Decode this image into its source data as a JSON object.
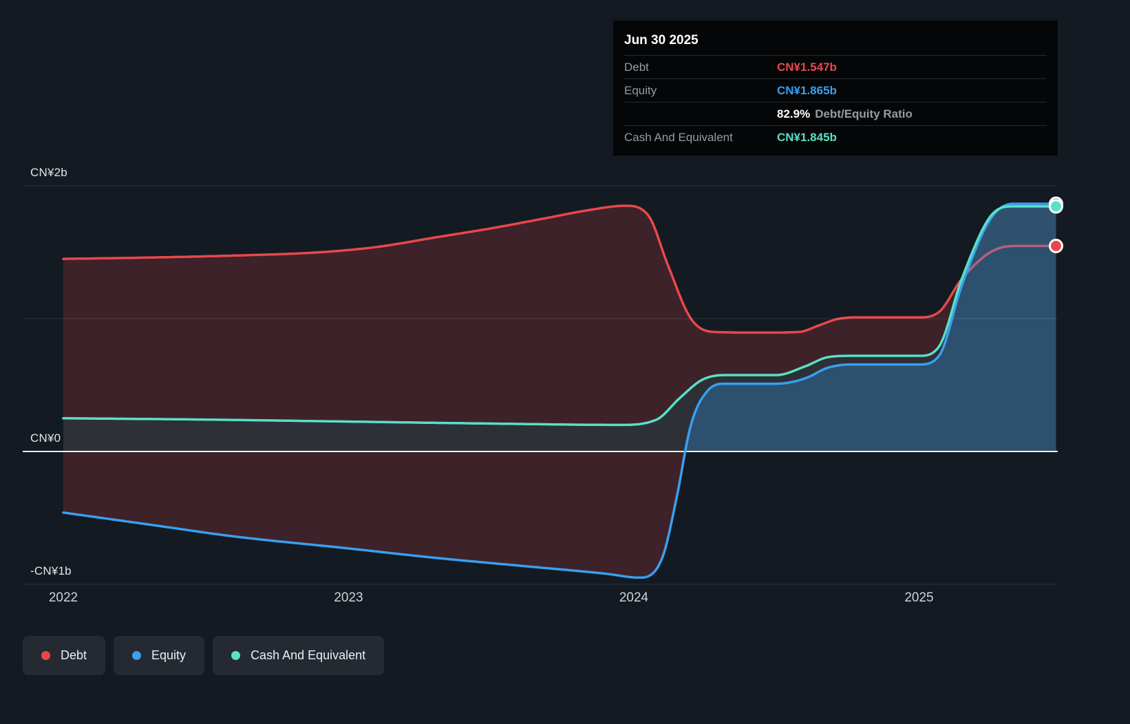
{
  "colors": {
    "background": "#141a21",
    "debt": "#e8484d",
    "equity": "#38a0f0",
    "cash": "#5ae0c5",
    "zero_line": "#eceff1",
    "gridline": "rgba(255,255,255,0.11)"
  },
  "tooltip": {
    "date": "Jun 30 2025",
    "debt_label": "Debt",
    "debt_value": "CN¥1.547b",
    "equity_label": "Equity",
    "equity_value": "CN¥1.865b",
    "ratio_value": "82.9%",
    "ratio_label": "Debt/Equity Ratio",
    "cash_label": "Cash And Equivalent",
    "cash_value": "CN¥1.845b"
  },
  "legend": {
    "items": [
      {
        "label": "Debt",
        "color_key": "debt"
      },
      {
        "label": "Equity",
        "color_key": "equity"
      },
      {
        "label": "Cash And Equivalent",
        "color_key": "cash"
      }
    ]
  },
  "chart_data": {
    "type": "area",
    "unit": "CN¥ billions",
    "x_axis": {
      "ticks": [
        {
          "label": "2022",
          "value": 2022
        },
        {
          "label": "2023",
          "value": 2023
        },
        {
          "label": "2024",
          "value": 2024
        },
        {
          "label": "2025",
          "value": 2025
        }
      ],
      "range": [
        2022,
        2025.48
      ]
    },
    "y_axis": {
      "ticks": [
        {
          "label": "CN¥2b",
          "value": 2
        },
        {
          "label": "CN¥0",
          "value": 0
        },
        {
          "label": "-CN¥1b",
          "value": -1
        }
      ],
      "grid_values": [
        2,
        1,
        -1
      ],
      "range": [
        -1.1,
        2.1
      ]
    },
    "series": [
      {
        "name": "Debt",
        "color_key": "debt",
        "end_value": 1.547,
        "points": [
          [
            2022,
            1.45
          ],
          [
            2022.3,
            1.46
          ],
          [
            2022.6,
            1.475
          ],
          [
            2022.9,
            1.5
          ],
          [
            2023.1,
            1.54
          ],
          [
            2023.3,
            1.61
          ],
          [
            2023.5,
            1.68
          ],
          [
            2023.7,
            1.76
          ],
          [
            2023.85,
            1.82
          ],
          [
            2023.97,
            1.85
          ],
          [
            2024.05,
            1.78
          ],
          [
            2024.12,
            1.4
          ],
          [
            2024.2,
            1.0
          ],
          [
            2024.28,
            0.9
          ],
          [
            2024.45,
            0.895
          ],
          [
            2024.58,
            0.9
          ],
          [
            2024.65,
            0.95
          ],
          [
            2024.72,
            1.0
          ],
          [
            2024.8,
            1.01
          ],
          [
            2025.0,
            1.01
          ],
          [
            2025.07,
            1.05
          ],
          [
            2025.15,
            1.3
          ],
          [
            2025.25,
            1.5
          ],
          [
            2025.33,
            1.547
          ],
          [
            2025.48,
            1.547
          ]
        ]
      },
      {
        "name": "Equity",
        "color_key": "equity",
        "end_value": 1.865,
        "points": [
          [
            2022,
            -0.46
          ],
          [
            2022.3,
            -0.55
          ],
          [
            2022.6,
            -0.64
          ],
          [
            2023,
            -0.73
          ],
          [
            2023.3,
            -0.8
          ],
          [
            2023.6,
            -0.86
          ],
          [
            2023.9,
            -0.92
          ],
          [
            2024.02,
            -0.95
          ],
          [
            2024.1,
            -0.8
          ],
          [
            2024.15,
            -0.35
          ],
          [
            2024.2,
            0.2
          ],
          [
            2024.26,
            0.46
          ],
          [
            2024.32,
            0.51
          ],
          [
            2024.5,
            0.51
          ],
          [
            2024.6,
            0.55
          ],
          [
            2024.68,
            0.63
          ],
          [
            2024.76,
            0.655
          ],
          [
            2025.0,
            0.655
          ],
          [
            2025.07,
            0.72
          ],
          [
            2025.15,
            1.25
          ],
          [
            2025.25,
            1.75
          ],
          [
            2025.33,
            1.865
          ],
          [
            2025.48,
            1.865
          ]
        ]
      },
      {
        "name": "Cash And Equivalent",
        "color_key": "cash",
        "end_value": 1.845,
        "points": [
          [
            2022,
            0.25
          ],
          [
            2022.5,
            0.24
          ],
          [
            2023,
            0.225
          ],
          [
            2023.5,
            0.21
          ],
          [
            2023.95,
            0.2
          ],
          [
            2024.08,
            0.24
          ],
          [
            2024.16,
            0.4
          ],
          [
            2024.24,
            0.54
          ],
          [
            2024.32,
            0.575
          ],
          [
            2024.5,
            0.575
          ],
          [
            2024.6,
            0.64
          ],
          [
            2024.68,
            0.71
          ],
          [
            2024.76,
            0.72
          ],
          [
            2025.0,
            0.72
          ],
          [
            2025.07,
            0.79
          ],
          [
            2025.15,
            1.3
          ],
          [
            2025.25,
            1.77
          ],
          [
            2025.33,
            1.845
          ],
          [
            2025.48,
            1.845
          ]
        ]
      }
    ]
  }
}
